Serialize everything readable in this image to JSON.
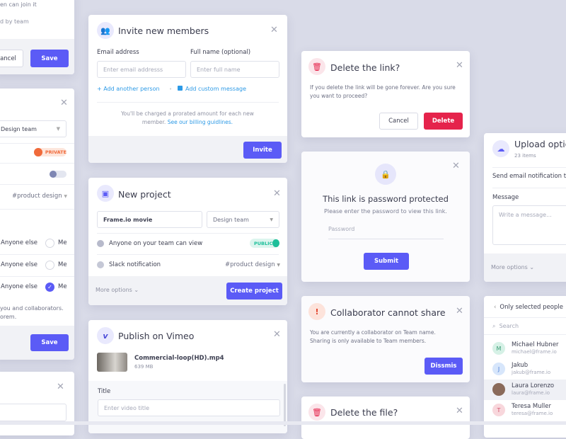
{
  "left_top": {
    "line1": "en can join it",
    "line2": "d by team",
    "cancel": "ancel",
    "save": "Save"
  },
  "left_mid": {
    "team": "Design team",
    "badge": "PRIVATE",
    "channel": "#product design",
    "rows": [
      {
        "label": "Anyone else",
        "opt": "Me",
        "checked": false
      },
      {
        "label": "Anyone else",
        "opt": "Me",
        "checked": false
      },
      {
        "label": "Anyone else",
        "opt": "Me",
        "checked": true
      }
    ],
    "note1": "you and collaborators.",
    "note2": "orem.",
    "save": "Save"
  },
  "invite": {
    "title": "Invite new members",
    "email_label": "Email address",
    "email_placeholder": "Enter email addresss",
    "name_label": "Full name (optional)",
    "name_placeholder": "Enter full name",
    "add_person": "+ Add another person",
    "add_message": "Add custom message",
    "note": "You'll be charged a prorated amount for each new member.",
    "billing_link": "See our billing guidlines.",
    "invite": "Invite"
  },
  "new_project": {
    "title": "New project",
    "name_value": "Frame.io movie",
    "team": "Design team",
    "visibility": "Anyone on your team can view",
    "badge": "PUBLIC",
    "slack": "Slack notification",
    "channel": "#product design",
    "more": "More options",
    "create": "Create project"
  },
  "vimeo": {
    "title": "Publish on Vimeo",
    "file": "Commercial-loop(HD).mp4",
    "size": "639 MB",
    "title_label": "Title",
    "title_placeholder": "Enter video title"
  },
  "delete_link": {
    "title": "Delete the link?",
    "body": "If you delete the link will be gone forever. Are you sure you want to proceed?",
    "cancel": "Cancel",
    "delete": "Delete"
  },
  "password": {
    "title": "This link is password protected",
    "body": "Please enter the password to view this link.",
    "placeholder": "Password",
    "submit": "Submit"
  },
  "collab": {
    "title": "Collaborator cannot share",
    "body": "You are currently a collaborator on Team name. Sharing is only available to Team members.",
    "dismiss": "Dissmis"
  },
  "delete_file": {
    "title": "Delete the file?"
  },
  "upload": {
    "title": "Upload options",
    "count": "23 items",
    "notify": "Send email notification to",
    "message_label": "Message",
    "message_placeholder": "Write a message...",
    "more": "More options"
  },
  "people": {
    "back": "Only selected people",
    "search": "Search",
    "list": [
      {
        "initial": "M",
        "name": "Michael Hubner",
        "email": "michael@frame.io",
        "color": "#d6f1e6",
        "fg": "#3a9c74"
      },
      {
        "initial": "J",
        "name": "Jakub",
        "email": "jakub@frame.io",
        "color": "#d7e6fb",
        "fg": "#4b7fd6"
      },
      {
        "initial": "",
        "name": "Laura Lorenzo",
        "email": "laura@frame.io",
        "color": "#8a6a5a",
        "fg": "#fff"
      },
      {
        "initial": "T",
        "name": "Teresa Muller",
        "email": "teresa@frame.io",
        "color": "#f8d7dc",
        "fg": "#d0506a"
      }
    ]
  },
  "colors": {
    "primary": "#5b5bf6",
    "danger": "#e5234b",
    "link": "#2d9ae6",
    "public": "#1dbf9a",
    "private": "#f06a3a"
  }
}
